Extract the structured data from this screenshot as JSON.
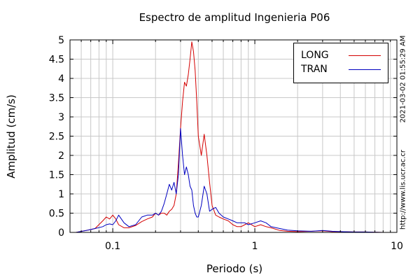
{
  "chart_data": {
    "type": "line",
    "title": "Espectro de amplitud Ingenieria P06",
    "xlabel": "Periodo (s)",
    "ylabel": "Amplitud (cm/s)",
    "x_scale": "log",
    "xlim": [
      0.05,
      10
    ],
    "ylim": [
      0,
      5
    ],
    "x_ticks": [
      0.1,
      1,
      10
    ],
    "x_tick_labels": [
      "0.1",
      "1",
      "10"
    ],
    "y_ticks": [
      0,
      0.5,
      1,
      1.5,
      2,
      2.5,
      3,
      3.5,
      4,
      4.5,
      5
    ],
    "y_tick_labels": [
      "0",
      "0.5",
      "1",
      "1.5",
      "2",
      "2.5",
      "3",
      "3.5",
      "4",
      "4.5",
      "5"
    ],
    "grid": true,
    "legend_position": "top-right",
    "series": [
      {
        "name": "LONG",
        "color": "#d40000",
        "x": [
          0.055,
          0.065,
          0.075,
          0.085,
          0.09,
          0.095,
          0.1,
          0.105,
          0.11,
          0.12,
          0.13,
          0.145,
          0.16,
          0.175,
          0.19,
          0.2,
          0.21,
          0.22,
          0.23,
          0.24,
          0.25,
          0.26,
          0.27,
          0.28,
          0.29,
          0.3,
          0.31,
          0.32,
          0.33,
          0.34,
          0.35,
          0.36,
          0.37,
          0.38,
          0.39,
          0.4,
          0.42,
          0.44,
          0.46,
          0.48,
          0.5,
          0.53,
          0.56,
          0.6,
          0.65,
          0.7,
          0.75,
          0.8,
          0.85,
          0.9,
          1.0,
          1.1,
          1.2,
          1.3,
          1.5,
          1.7,
          2.0,
          2.5,
          3.0,
          3.5,
          4.0,
          5.0,
          6.0,
          8.0,
          10.0
        ],
        "y": [
          0.0,
          0.05,
          0.1,
          0.3,
          0.4,
          0.35,
          0.45,
          0.35,
          0.2,
          0.12,
          0.12,
          0.18,
          0.28,
          0.35,
          0.4,
          0.5,
          0.45,
          0.5,
          0.5,
          0.45,
          0.55,
          0.6,
          0.7,
          1.0,
          1.8,
          2.7,
          3.4,
          3.9,
          3.8,
          4.1,
          4.5,
          4.95,
          4.7,
          4.2,
          3.4,
          2.5,
          2.0,
          2.55,
          2.0,
          1.3,
          0.7,
          0.45,
          0.4,
          0.35,
          0.3,
          0.2,
          0.15,
          0.15,
          0.2,
          0.25,
          0.15,
          0.2,
          0.15,
          0.12,
          0.05,
          0.03,
          0.02,
          0.03,
          0.04,
          0.02,
          0.02,
          0.01,
          0.01,
          0.0,
          0.0
        ]
      },
      {
        "name": "TRAN",
        "color": "#0000c0",
        "x": [
          0.055,
          0.065,
          0.075,
          0.085,
          0.09,
          0.095,
          0.1,
          0.105,
          0.11,
          0.12,
          0.13,
          0.145,
          0.16,
          0.175,
          0.19,
          0.2,
          0.21,
          0.22,
          0.23,
          0.24,
          0.25,
          0.26,
          0.27,
          0.28,
          0.29,
          0.3,
          0.31,
          0.32,
          0.33,
          0.34,
          0.35,
          0.36,
          0.37,
          0.38,
          0.39,
          0.4,
          0.42,
          0.44,
          0.46,
          0.48,
          0.5,
          0.53,
          0.56,
          0.6,
          0.65,
          0.7,
          0.75,
          0.8,
          0.85,
          0.9,
          1.0,
          1.1,
          1.2,
          1.3,
          1.5,
          1.7,
          2.0,
          2.5,
          3.0,
          3.5,
          4.0,
          5.0,
          6.0,
          8.0,
          10.0
        ],
        "y": [
          0.0,
          0.05,
          0.1,
          0.15,
          0.2,
          0.22,
          0.2,
          0.3,
          0.45,
          0.25,
          0.15,
          0.2,
          0.4,
          0.45,
          0.45,
          0.5,
          0.45,
          0.55,
          0.75,
          1.0,
          1.25,
          1.1,
          1.3,
          1.0,
          1.5,
          2.7,
          2.0,
          1.5,
          1.7,
          1.5,
          1.2,
          1.1,
          0.7,
          0.5,
          0.4,
          0.4,
          0.7,
          1.2,
          1.0,
          0.55,
          0.6,
          0.65,
          0.5,
          0.4,
          0.35,
          0.3,
          0.25,
          0.25,
          0.25,
          0.2,
          0.25,
          0.3,
          0.25,
          0.15,
          0.1,
          0.06,
          0.04,
          0.03,
          0.05,
          0.03,
          0.02,
          0.01,
          0.01,
          0.0,
          0.0
        ]
      }
    ]
  },
  "side_notes": {
    "timestamp": "2021-03-02 01:55:29 AM",
    "url": "http://www.lis.ucr.ac.cr"
  }
}
